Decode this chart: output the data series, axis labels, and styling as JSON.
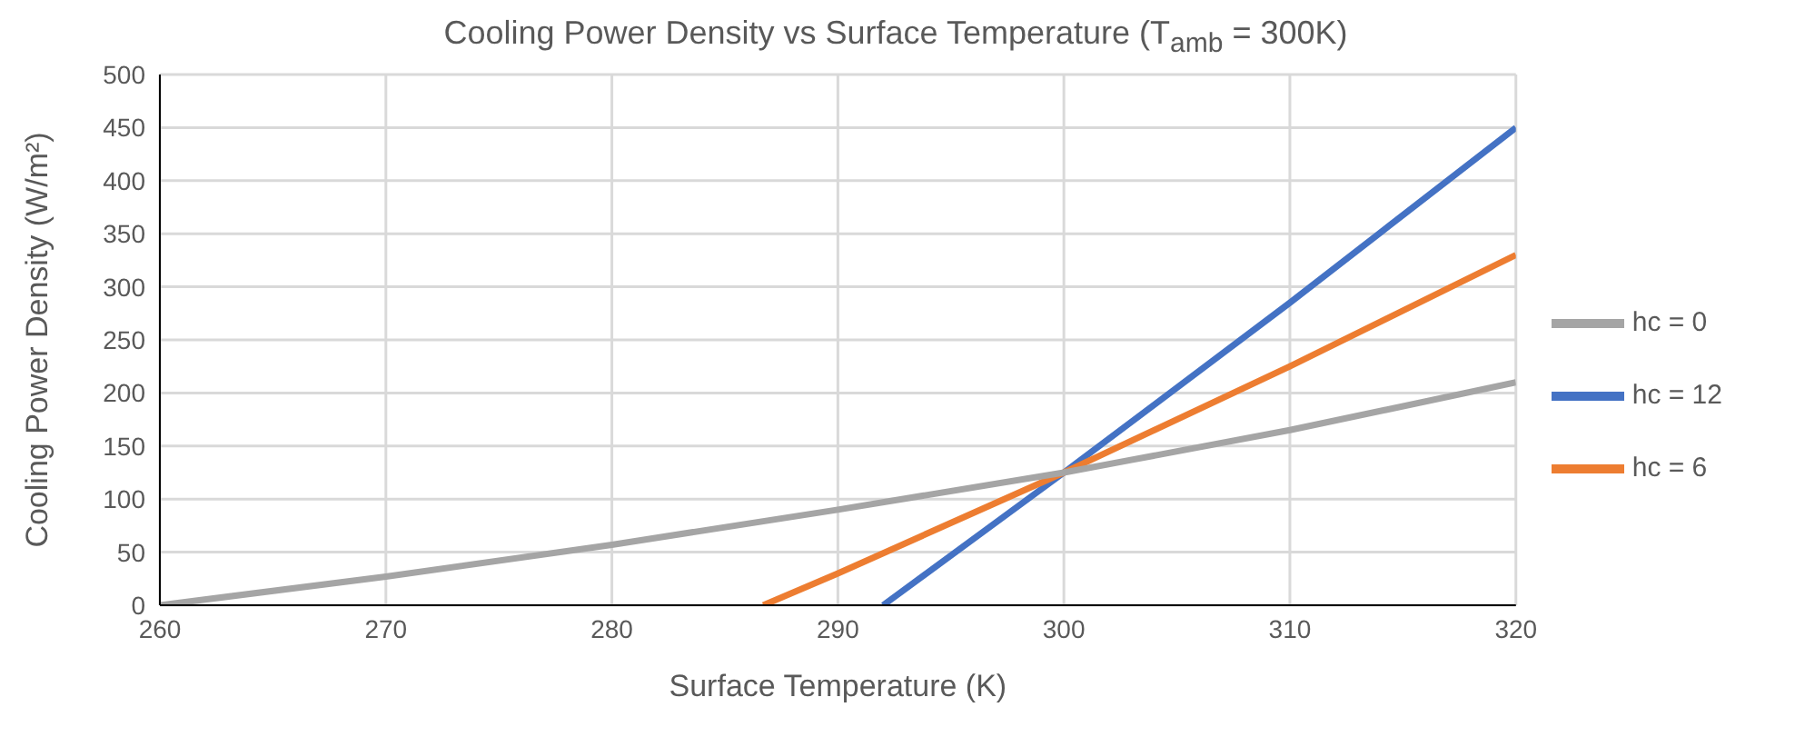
{
  "chart_data": {
    "type": "line",
    "title": "Cooling Power Density vs Surface Temperature (T$_{amb}$ = 300K)",
    "xlabel": "Surface Temperature (K)",
    "ylabel": "Cooling Power Density (W/m²)",
    "xlim": [
      260,
      320
    ],
    "xticks": [
      260,
      270,
      280,
      290,
      300,
      310,
      320
    ],
    "ylim": [
      0,
      500
    ],
    "yticks": [
      0,
      50,
      100,
      150,
      200,
      250,
      300,
      350,
      400,
      450,
      500
    ],
    "grid": true,
    "legend": "right",
    "marker": "none",
    "line_style": "solid",
    "series": [
      {
        "name": "hc = 12",
        "color": "#4472c4",
        "x": [
          292,
          300,
          310,
          320
        ],
        "values": [
          0,
          125,
          285,
          450
        ]
      },
      {
        "name": "hc = 6",
        "color": "#ed7d31",
        "x": [
          286.7,
          290,
          300,
          310,
          320
        ],
        "values": [
          0,
          30,
          125,
          225,
          330
        ]
      },
      {
        "name": "hc = 0",
        "color": "#a5a5a5",
        "x": [
          260,
          270,
          280,
          290,
          300,
          310,
          320
        ],
        "values": [
          0,
          27,
          57,
          90,
          125,
          165,
          210
        ]
      }
    ]
  }
}
